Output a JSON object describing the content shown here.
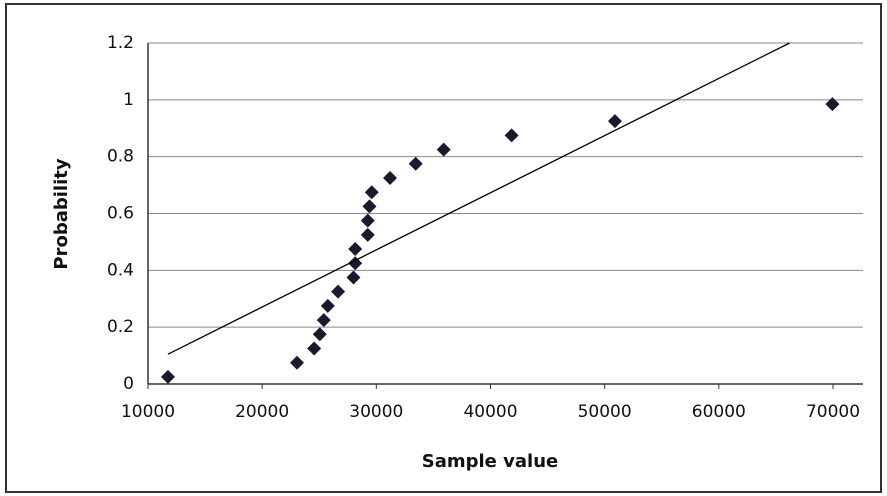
{
  "chart_data": {
    "type": "scatter",
    "x_label": "Sample value",
    "y_label": "Probability",
    "series": [
      {
        "color": "#1a1a2e",
        "x": [
          11750,
          23050,
          24550,
          25050,
          25400,
          25750,
          26650,
          28000,
          28150,
          28150,
          29250,
          29250,
          29400,
          29600,
          31200,
          33450,
          35900,
          41850,
          50900,
          69950
        ],
        "values": [
          0.025,
          0.075,
          0.125,
          0.175,
          0.225,
          0.275,
          0.325,
          0.375,
          0.425,
          0.475,
          0.525,
          0.575,
          0.625,
          0.675,
          0.725,
          0.775,
          0.825,
          0.875,
          0.925,
          0.985
        ]
      }
    ],
    "trendline": {
      "color": "#000000",
      "x": [
        11750,
        66200
      ],
      "values": [
        0.105,
        1.2
      ]
    },
    "xlim": [
      10000,
      70000
    ],
    "xticks": [
      10000,
      20000,
      30000,
      40000,
      50000,
      60000,
      70000
    ],
    "ylim": [
      0,
      1.2
    ],
    "yticks": [
      0,
      0.2,
      0.4,
      0.6,
      0.8,
      1,
      1.2
    ],
    "grid": true
  }
}
